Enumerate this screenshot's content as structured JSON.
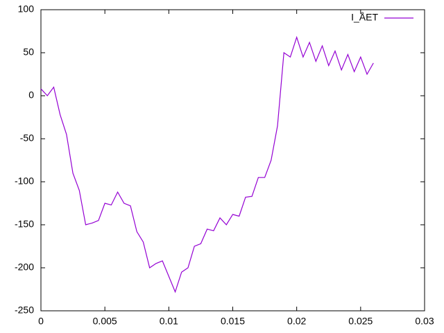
{
  "chart_data": {
    "type": "line",
    "x": [
      0,
      0.0005,
      0.001,
      0.0015,
      0.002,
      0.0025,
      0.003,
      0.0035,
      0.004,
      0.0045,
      0.005,
      0.0055,
      0.006,
      0.0065,
      0.007,
      0.0075,
      0.008,
      0.0085,
      0.009,
      0.0095,
      0.01,
      0.0105,
      0.011,
      0.0115,
      0.012,
      0.0125,
      0.013,
      0.0135,
      0.014,
      0.0145,
      0.015,
      0.0155,
      0.016,
      0.0165,
      0.017,
      0.0175,
      0.018,
      0.0185,
      0.019,
      0.0195,
      0.02,
      0.0205,
      0.021,
      0.0215,
      0.022,
      0.0225,
      0.023,
      0.0235,
      0.024,
      0.0245,
      0.025,
      0.0255,
      0.026
    ],
    "series": [
      {
        "name": "I_ÅET",
        "color": "#9400d3",
        "values": [
          8,
          0,
          10,
          -22,
          -45,
          -90,
          -110,
          -150,
          -148,
          -145,
          -125,
          -127,
          -112,
          -125,
          -128,
          -158,
          -170,
          -200,
          -195,
          -192,
          -210,
          -228,
          -205,
          -200,
          -175,
          -172,
          -155,
          -157,
          -142,
          -150,
          -138,
          -140,
          -118,
          -117,
          -95,
          -95,
          -75,
          -35,
          50,
          45,
          68,
          45,
          62,
          40,
          58,
          35,
          52,
          30,
          48,
          28,
          45,
          25,
          38
        ]
      }
    ],
    "xlim": [
      0,
      0.03
    ],
    "xticks": [
      0,
      0.005,
      0.01,
      0.015,
      0.02,
      0.025,
      0.03
    ],
    "ylim": [
      -250,
      100
    ],
    "yticks": [
      -250,
      -200,
      -150,
      -100,
      -50,
      0,
      50,
      100
    ],
    "legend": "top-right"
  }
}
